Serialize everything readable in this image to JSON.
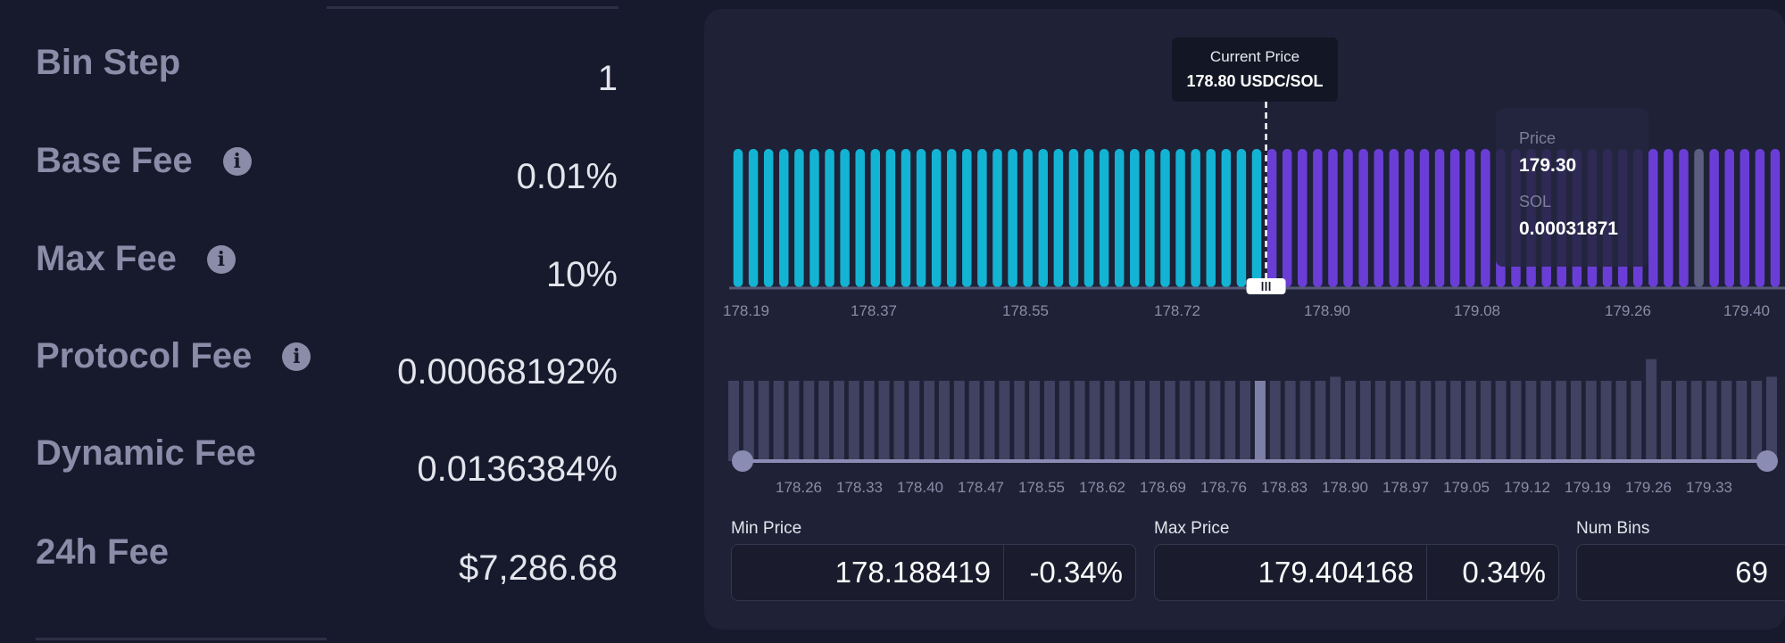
{
  "fees": [
    {
      "label": "Bin Step",
      "value": "1",
      "info": false
    },
    {
      "label": "Base Fee",
      "value": "0.01%",
      "info": true
    },
    {
      "label": "Max Fee",
      "value": "10%",
      "info": true
    },
    {
      "label": "Protocol Fee",
      "value": "0.00068192%",
      "info": true
    },
    {
      "label": "Dynamic Fee",
      "value": "0.0136384%",
      "info": false
    },
    {
      "label": "24h Fee",
      "value": "$7,286.68",
      "info": false
    }
  ],
  "current_price_tooltip": {
    "title": "Current Price",
    "value": "178.80 USDC/SOL"
  },
  "hover_tooltip": {
    "price_label": "Price",
    "price_value": "179.30",
    "sol_label": "SOL",
    "sol_value": "0.00031871"
  },
  "range_inputs": {
    "min_price": {
      "label": "Min Price",
      "value": "178.188419",
      "change": "-0.34%"
    },
    "max_price": {
      "label": "Max Price",
      "value": "179.404168",
      "change": "0.34%"
    },
    "num_bins": {
      "label": "Num Bins",
      "value": "69"
    }
  },
  "colors": {
    "quote_bins": "#13b3d3",
    "base_bins": "#6a3ed6",
    "hovered_bin": "#5c5e80",
    "range_bars": "#3f4260",
    "current_bar": "#7c7fa6",
    "slider_track": "#8a8cb3"
  },
  "icons": {
    "info": "info-icon",
    "handle": "drag-handle-icon"
  },
  "chart_data": [
    {
      "type": "bar",
      "name": "liquidity-bins",
      "x_tick_labels": [
        "178.19",
        "178.37",
        "178.55",
        "178.72",
        "178.90",
        "179.08",
        "179.26",
        "179.40"
      ],
      "bin_count": 69,
      "current_price": 178.8,
      "current_bin_index": 35,
      "hovered_bin_index": 63,
      "series": [
        {
          "side": "quote",
          "color": "#13b3d3",
          "bins": 35,
          "relative_height": 1.0
        },
        {
          "side": "base",
          "color": "#6a3ed6",
          "bins": 34,
          "relative_height": 1.0
        }
      ]
    },
    {
      "type": "bar",
      "name": "range-selector",
      "x_tick_labels": [
        "178.26",
        "178.33",
        "178.40",
        "178.47",
        "178.55",
        "178.62",
        "178.69",
        "178.76",
        "178.83",
        "178.90",
        "178.97",
        "179.05",
        "179.12",
        "179.19",
        "179.26",
        "179.33"
      ],
      "relative_heights": [
        1,
        1,
        1,
        1,
        1,
        1,
        1,
        1,
        1,
        1,
        1,
        1,
        1,
        1,
        1,
        1,
        1,
        1,
        1,
        1,
        1,
        1,
        1,
        1,
        1,
        1,
        1,
        1,
        1,
        1,
        1,
        1,
        1,
        1,
        1,
        1,
        1,
        1,
        1,
        1,
        1.05,
        1,
        1,
        1,
        1,
        1,
        1,
        1,
        1,
        1,
        1,
        1,
        1,
        1,
        1,
        1,
        1,
        1,
        1,
        1,
        1,
        1.27,
        1,
        1,
        1,
        1,
        1,
        1,
        1,
        1.05
      ],
      "highlighted_index": 35
    }
  ]
}
